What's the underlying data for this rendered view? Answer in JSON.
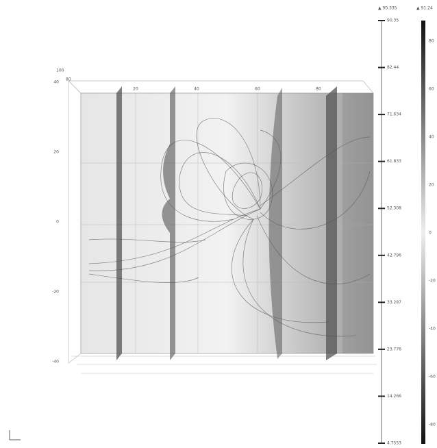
{
  "box_axes": {
    "corner": [
      "100",
      "80"
    ],
    "top_ticks": [
      "20",
      "40",
      "60",
      "80"
    ],
    "left_ticks": [
      "40",
      "20",
      "0",
      "-20",
      "-40"
    ]
  },
  "colorbar_left": {
    "header": "▲ 90.335",
    "ticks": [
      "90.35",
      "82.44",
      "71.634",
      "61.833",
      "52.308",
      "42.796",
      "33.287",
      "23.776",
      "14.266",
      "4.7553"
    ]
  },
  "colorbar_right": {
    "header": "▲ 91.24",
    "ticks": [
      "80",
      "60",
      "40",
      "20",
      "0",
      "-20",
      "-40",
      "-60",
      "-80"
    ]
  }
}
